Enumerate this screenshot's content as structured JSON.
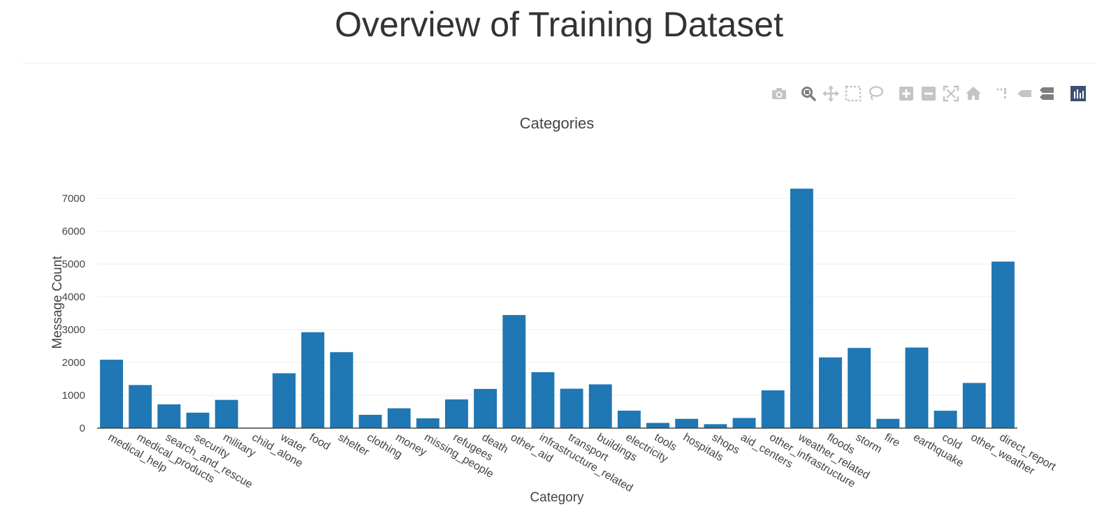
{
  "page": {
    "title": "Overview of Training Dataset"
  },
  "modebar": {
    "buttons": [
      {
        "name": "camera-icon"
      },
      {
        "name": "zoom-icon"
      },
      {
        "name": "pan-icon"
      },
      {
        "name": "box-select-icon"
      },
      {
        "name": "lasso-select-icon"
      },
      {
        "name": "zoom-in-icon"
      },
      {
        "name": "zoom-out-icon"
      },
      {
        "name": "autoscale-icon"
      },
      {
        "name": "reset-axes-icon"
      },
      {
        "name": "spike-lines-icon"
      },
      {
        "name": "hover-closest-icon"
      },
      {
        "name": "hover-compare-icon"
      },
      {
        "name": "plotly-logo-icon"
      }
    ]
  },
  "colors": {
    "bar": "#1f77b4",
    "grid": "#eeeeee",
    "text": "#444444",
    "modebar_icon": "#c4c4c4",
    "modebar_active": "#7f7f7f",
    "logo_bg": "#3f4f75"
  },
  "chart_data": {
    "type": "bar",
    "title": "Categories",
    "xlabel": "Category",
    "ylabel": "Message Count",
    "ylim": [
      0,
      7300
    ],
    "yticks": [
      0,
      1000,
      2000,
      3000,
      4000,
      5000,
      6000,
      7000
    ],
    "ytick_labels": [
      "0",
      "1000",
      "2000",
      "3000",
      "4000",
      "5000",
      "6000",
      "7000"
    ],
    "grid": true,
    "categories": [
      "medical_help",
      "medical_products",
      "search_and_rescue",
      "security",
      "military",
      "child_alone",
      "water",
      "food",
      "shelter",
      "clothing",
      "money",
      "missing_people",
      "refugees",
      "death",
      "other_aid",
      "infrastructure_related",
      "transport",
      "buildings",
      "electricity",
      "tools",
      "hospitals",
      "shops",
      "aid_centers",
      "other_infrastructure",
      "weather_related",
      "floods",
      "storm",
      "fire",
      "earthquake",
      "cold",
      "other_weather",
      "direct_report"
    ],
    "values": [
      2084,
      1313,
      724,
      471,
      860,
      0,
      1672,
      2923,
      2314,
      405,
      604,
      298,
      875,
      1194,
      3446,
      1705,
      1201,
      1333,
      532,
      159,
      283,
      120,
      309,
      1151,
      7297,
      2155,
      2443,
      282,
      2455,
      530,
      1376,
      5075
    ]
  }
}
